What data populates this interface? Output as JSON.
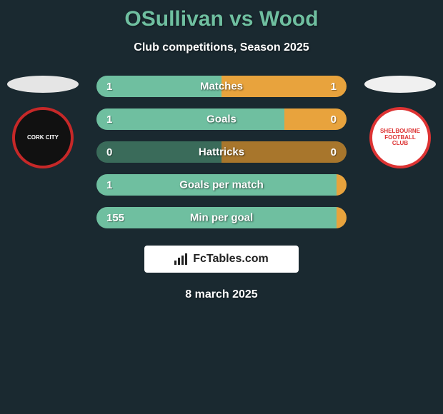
{
  "title_color": "#6fbfa0",
  "background": "#1a2930",
  "title": "OSullivan vs Wood",
  "subtitle": "Club competitions, Season 2025",
  "date": "8 march 2025",
  "attribution": "FcTables.com",
  "left": {
    "oval_color": "#e5e5e5",
    "club_name": "CORK CITY",
    "badge_bg": "#111111",
    "badge_border": "#c62828",
    "badge_text_color": "#ffffff"
  },
  "right": {
    "oval_color": "#f0f0f0",
    "club_name": "SHELBOURNE FOOTBALL CLUB",
    "badge_bg": "#ffffff",
    "badge_border": "#d33",
    "badge_text_color": "#d33"
  },
  "bar_colors": {
    "left": "#6fbfa0",
    "right": "#e8a33d",
    "left_dim": "#3a6b5a",
    "right_dim": "#a8762c"
  },
  "stats": [
    {
      "label": "Matches",
      "left_val": "1",
      "right_val": "1",
      "left_pct": 50,
      "right_pct": 50
    },
    {
      "label": "Goals",
      "left_val": "1",
      "right_val": "0",
      "left_pct": 75,
      "right_pct": 25
    },
    {
      "label": "Hattricks",
      "left_val": "0",
      "right_val": "0",
      "left_pct": 50,
      "right_pct": 50,
      "dim": true
    },
    {
      "label": "Goals per match",
      "left_val": "1",
      "right_val": "",
      "left_pct": 100,
      "right_pct": 0
    },
    {
      "label": "Min per goal",
      "left_val": "155",
      "right_val": "",
      "left_pct": 100,
      "right_pct": 0
    }
  ]
}
